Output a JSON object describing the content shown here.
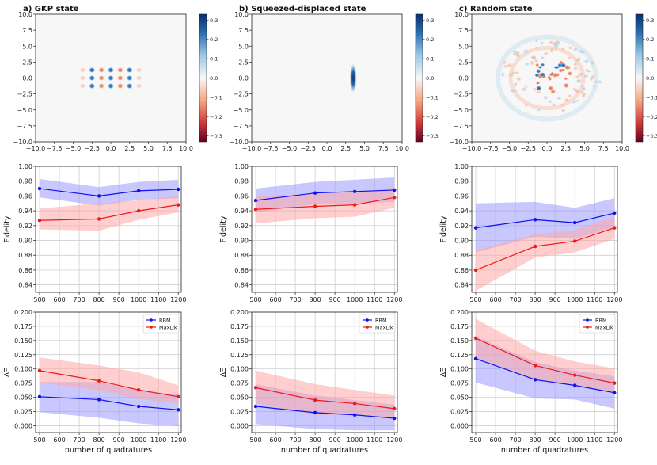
{
  "colors": {
    "rbm": "#1010ee",
    "maxlik": "#ee1a1a",
    "rbm_band": "#9a9aff",
    "maxlik_band": "#ffa5a5",
    "grid": "#c8c8c8"
  },
  "chart_data": [
    {
      "type": "heatmap",
      "id": "wigner-gkp",
      "title": "a) GKP state",
      "xlim": [
        -10,
        10
      ],
      "ylim": [
        -10,
        10
      ],
      "xticks": [
        -10,
        -7.5,
        -5,
        -2.5,
        0,
        2.5,
        5,
        7.5,
        10
      ],
      "xtick_labels": [
        "−10.0",
        "−7.5",
        "−5.0",
        "−2.5",
        "0.0",
        "2.5",
        "5.0",
        "7.5",
        "10.0"
      ],
      "yticks": [
        10,
        7.5,
        5,
        2.5,
        0,
        -2.5,
        -5,
        -7.5,
        -10
      ],
      "ytick_labels": [
        "10.0",
        "7.5",
        "5.0",
        "2.5",
        "0.0",
        "−2.5",
        "−5.0",
        "−7.5",
        "−10.0"
      ],
      "colorbar": {
        "range": [
          -0.33,
          0.33
        ],
        "ticks": [
          0.3,
          0.2,
          0.1,
          0.0,
          -0.1,
          -0.2,
          -0.3
        ],
        "tick_labels": [
          "0.3",
          "0.2",
          "0.1",
          "0.0",
          "−0.1",
          "−0.2",
          "−0.3"
        ]
      }
    },
    {
      "type": "heatmap",
      "id": "wigner-squeezed",
      "title": "b) Squeezed-displaced state",
      "xlim": [
        -10,
        10
      ],
      "ylim": [
        -10,
        10
      ],
      "xticks": [
        -10,
        -7.5,
        -5,
        -2.5,
        0,
        2.5,
        5,
        7.5,
        10
      ],
      "xtick_labels": [
        "−10.0",
        "−7.5",
        "−5.0",
        "−2.5",
        "0.0",
        "2.5",
        "5.0",
        "7.5",
        "10.0"
      ],
      "yticks": [
        10,
        7.5,
        5,
        2.5,
        0,
        -2.5,
        -5,
        -7.5,
        -10
      ],
      "ytick_labels": [
        "10.0",
        "7.5",
        "5.0",
        "2.5",
        "0.0",
        "−2.5",
        "−5.0",
        "−7.5",
        "−10.0"
      ],
      "colorbar": {
        "range": [
          -0.33,
          0.33
        ],
        "ticks": [
          0.3,
          0.2,
          0.1,
          0.0,
          -0.1,
          -0.2,
          -0.3
        ],
        "tick_labels": [
          "0.3",
          "0.2",
          "0.1",
          "0.0",
          "−0.1",
          "−0.2",
          "−0.3"
        ]
      }
    },
    {
      "type": "heatmap",
      "id": "wigner-random",
      "title": "c) Random state",
      "xlim": [
        -10,
        10
      ],
      "ylim": [
        -10,
        10
      ],
      "xticks": [
        -10,
        -7.5,
        -5,
        -2.5,
        0,
        2.5,
        5,
        7.5,
        10
      ],
      "xtick_labels": [
        "−10.0",
        "−7.5",
        "−5.0",
        "−2.5",
        "0.0",
        "2.5",
        "5.0",
        "7.5",
        "10.0"
      ],
      "yticks": [
        10,
        7.5,
        5,
        2.5,
        0,
        -2.5,
        -5,
        -7.5,
        -10
      ],
      "ytick_labels": [
        "10.0",
        "7.5",
        "5.0",
        "2.5",
        "0.0",
        "−2.5",
        "−5.0",
        "−7.5",
        "−10.0"
      ],
      "colorbar": {
        "range": [
          -0.33,
          0.33
        ],
        "ticks": [
          0.3,
          0.2,
          0.1,
          0.0,
          -0.1,
          -0.2,
          -0.3
        ],
        "tick_labels": [
          "0.3",
          "0.2",
          "0.1",
          "0.0",
          "−0.1",
          "−0.2",
          "−0.3"
        ]
      }
    },
    {
      "type": "line",
      "id": "fidelity-gkp",
      "ylabel": "Fidelity",
      "xlabel": "",
      "x": [
        500,
        800,
        1000,
        1200
      ],
      "xlim": [
        480,
        1215
      ],
      "ylim": [
        0.83,
        1.0
      ],
      "xticks": [
        500,
        600,
        700,
        800,
        900,
        1000,
        1100,
        1200
      ],
      "xtick_labels": [
        "500",
        "600",
        "700",
        "800",
        "900",
        "1000",
        "1100",
        "1200"
      ],
      "yticks": [
        0.84,
        0.86,
        0.88,
        0.9,
        0.92,
        0.94,
        0.96,
        0.98,
        1.0
      ],
      "ytick_labels": [
        "0.84",
        "0.86",
        "0.88",
        "0.90",
        "0.92",
        "0.94",
        "0.96",
        "0.98",
        "1.00"
      ],
      "series": [
        {
          "name": "RBM",
          "values": [
            0.97,
            0.96,
            0.967,
            0.969
          ],
          "lower": [
            0.958,
            0.947,
            0.955,
            0.957
          ],
          "upper": [
            0.983,
            0.972,
            0.979,
            0.982
          ]
        },
        {
          "name": "MaxLik",
          "values": [
            0.927,
            0.929,
            0.94,
            0.948
          ],
          "lower": [
            0.915,
            0.913,
            0.928,
            0.938
          ],
          "upper": [
            0.943,
            0.95,
            0.954,
            0.96
          ]
        }
      ]
    },
    {
      "type": "line",
      "id": "fidelity-squeezed",
      "ylabel": "Fidelity",
      "xlabel": "",
      "x": [
        500,
        800,
        1000,
        1200
      ],
      "xlim": [
        480,
        1215
      ],
      "ylim": [
        0.83,
        1.0
      ],
      "xticks": [
        500,
        600,
        700,
        800,
        900,
        1000,
        1100,
        1200
      ],
      "xtick_labels": [
        "500",
        "600",
        "700",
        "800",
        "900",
        "1000",
        "1100",
        "1200"
      ],
      "yticks": [
        0.84,
        0.86,
        0.88,
        0.9,
        0.92,
        0.94,
        0.96,
        0.98,
        1.0
      ],
      "ytick_labels": [
        "0.84",
        "0.86",
        "0.88",
        "0.90",
        "0.92",
        "0.94",
        "0.96",
        "0.98",
        "1.00"
      ],
      "series": [
        {
          "name": "RBM",
          "values": [
            0.954,
            0.964,
            0.966,
            0.968
          ],
          "lower": [
            0.938,
            0.949,
            0.95,
            0.952
          ],
          "upper": [
            0.97,
            0.979,
            0.982,
            0.985
          ]
        },
        {
          "name": "MaxLik",
          "values": [
            0.942,
            0.946,
            0.948,
            0.958
          ],
          "lower": [
            0.923,
            0.93,
            0.932,
            0.944
          ],
          "upper": [
            0.96,
            0.963,
            0.965,
            0.972
          ]
        }
      ]
    },
    {
      "type": "line",
      "id": "fidelity-random",
      "ylabel": "Fidelity",
      "xlabel": "",
      "x": [
        500,
        800,
        1000,
        1200
      ],
      "xlim": [
        480,
        1215
      ],
      "ylim": [
        0.83,
        1.0
      ],
      "xticks": [
        500,
        600,
        700,
        800,
        900,
        1000,
        1100,
        1200
      ],
      "xtick_labels": [
        "500",
        "600",
        "700",
        "800",
        "900",
        "1000",
        "1100",
        "1200"
      ],
      "yticks": [
        0.84,
        0.86,
        0.88,
        0.9,
        0.92,
        0.94,
        0.96,
        0.98,
        1.0
      ],
      "ytick_labels": [
        "0.84",
        "0.86",
        "0.88",
        "0.90",
        "0.92",
        "0.94",
        "0.96",
        "0.98",
        "1.00"
      ],
      "series": [
        {
          "name": "RBM",
          "values": [
            0.917,
            0.928,
            0.924,
            0.937
          ],
          "lower": [
            0.884,
            0.905,
            0.902,
            0.918
          ],
          "upper": [
            0.95,
            0.952,
            0.944,
            0.957
          ]
        },
        {
          "name": "MaxLik",
          "values": [
            0.86,
            0.892,
            0.899,
            0.917
          ],
          "lower": [
            0.832,
            0.877,
            0.884,
            0.902
          ],
          "upper": [
            0.887,
            0.908,
            0.914,
            0.933
          ]
        }
      ]
    },
    {
      "type": "line",
      "id": "delta-gkp",
      "ylabel": "ΔΞ",
      "xlabel": "number of quadratures",
      "x": [
        500,
        800,
        1000,
        1200
      ],
      "xlim": [
        480,
        1215
      ],
      "ylim": [
        -0.012,
        0.2
      ],
      "xticks": [
        500,
        600,
        700,
        800,
        900,
        1000,
        1100,
        1200
      ],
      "xtick_labels": [
        "500",
        "600",
        "700",
        "800",
        "900",
        "1000",
        "1100",
        "1200"
      ],
      "yticks": [
        0.0,
        0.025,
        0.05,
        0.075,
        0.1,
        0.125,
        0.15,
        0.175,
        0.2
      ],
      "ytick_labels": [
        "0.000",
        "0.025",
        "0.050",
        "0.075",
        "0.100",
        "0.125",
        "0.150",
        "0.175",
        "0.200"
      ],
      "legend": {
        "position": "upper right",
        "entries": [
          "RBM",
          "MaxLik"
        ]
      },
      "series": [
        {
          "name": "RBM",
          "values": [
            0.051,
            0.046,
            0.034,
            0.028
          ],
          "lower": [
            0.024,
            0.014,
            0.004,
            -0.001
          ],
          "upper": [
            0.077,
            0.077,
            0.062,
            0.055
          ]
        },
        {
          "name": "MaxLik",
          "values": [
            0.097,
            0.079,
            0.063,
            0.051
          ],
          "lower": [
            0.076,
            0.062,
            0.047,
            0.039
          ],
          "upper": [
            0.12,
            0.106,
            0.094,
            0.071
          ]
        }
      ]
    },
    {
      "type": "line",
      "id": "delta-squeezed",
      "ylabel": "ΔΞ",
      "xlabel": "number of quadratures",
      "x": [
        500,
        800,
        1000,
        1200
      ],
      "xlim": [
        480,
        1215
      ],
      "ylim": [
        -0.012,
        0.2
      ],
      "xticks": [
        500,
        600,
        700,
        800,
        900,
        1000,
        1100,
        1200
      ],
      "xtick_labels": [
        "500",
        "600",
        "700",
        "800",
        "900",
        "1000",
        "1100",
        "1200"
      ],
      "yticks": [
        0.0,
        0.025,
        0.05,
        0.075,
        0.1,
        0.125,
        0.15,
        0.175,
        0.2
      ],
      "ytick_labels": [
        "0.000",
        "0.025",
        "0.050",
        "0.075",
        "0.100",
        "0.125",
        "0.150",
        "0.175",
        "0.200"
      ],
      "legend": {
        "position": "upper right",
        "entries": [
          "RBM",
          "MaxLik"
        ]
      },
      "series": [
        {
          "name": "RBM",
          "values": [
            0.034,
            0.023,
            0.019,
            0.013
          ],
          "lower": [
            0.003,
            -0.006,
            -0.008,
            -0.008
          ],
          "upper": [
            0.073,
            0.053,
            0.045,
            0.037
          ]
        },
        {
          "name": "MaxLik",
          "values": [
            0.067,
            0.045,
            0.039,
            0.03
          ],
          "lower": [
            0.04,
            0.019,
            0.019,
            0.012
          ],
          "upper": [
            0.097,
            0.073,
            0.063,
            0.053
          ]
        }
      ]
    },
    {
      "type": "line",
      "id": "delta-random",
      "ylabel": "ΔΞ",
      "xlabel": "number of quadratures",
      "x": [
        500,
        800,
        1000,
        1200
      ],
      "xlim": [
        480,
        1215
      ],
      "ylim": [
        -0.012,
        0.2
      ],
      "xticks": [
        500,
        600,
        700,
        800,
        900,
        1000,
        1100,
        1200
      ],
      "xtick_labels": [
        "500",
        "600",
        "700",
        "800",
        "900",
        "1000",
        "1100",
        "1200"
      ],
      "yticks": [
        0.0,
        0.025,
        0.05,
        0.075,
        0.1,
        0.125,
        0.15,
        0.175,
        0.2
      ],
      "ytick_labels": [
        "0.000",
        "0.025",
        "0.050",
        "0.075",
        "0.100",
        "0.125",
        "0.150",
        "0.175",
        "0.200"
      ],
      "legend": {
        "position": "upper right",
        "entries": [
          "RBM",
          "MaxLik"
        ]
      },
      "series": [
        {
          "name": "RBM",
          "values": [
            0.118,
            0.081,
            0.071,
            0.058
          ],
          "lower": [
            0.076,
            0.048,
            0.046,
            0.03
          ],
          "upper": [
            0.157,
            0.112,
            0.097,
            0.087
          ]
        },
        {
          "name": "MaxLik",
          "values": [
            0.154,
            0.106,
            0.089,
            0.075
          ],
          "lower": [
            0.118,
            0.08,
            0.07,
            0.06
          ],
          "upper": [
            0.188,
            0.132,
            0.113,
            0.101
          ]
        }
      ]
    }
  ]
}
